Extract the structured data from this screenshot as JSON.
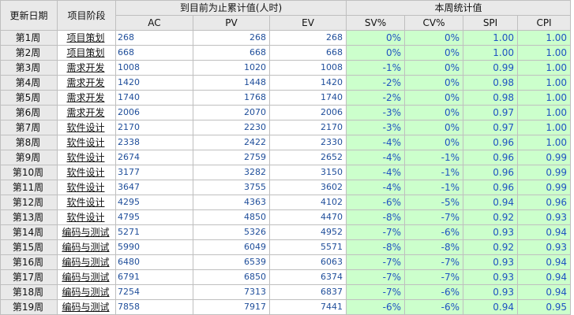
{
  "headers": {
    "update_date": "更新日期",
    "project_phase": "项目阶段",
    "cumulative_group": "到目前为止累计值(人时)",
    "weekly_group": "本周统计值",
    "ac": "AC",
    "pv": "PV",
    "ev": "EV",
    "sv_pct": "SV%",
    "cv_pct": "CV%",
    "spi": "SPI",
    "cpi": "CPI"
  },
  "rows": [
    {
      "week": "第1周",
      "phase": "项目策划",
      "ac": "268",
      "pv": "268",
      "ev": "268",
      "sv": "0%",
      "cv": "0%",
      "spi": "1.00",
      "cpi": "1.00"
    },
    {
      "week": "第2周",
      "phase": "项目策划",
      "ac": "668",
      "pv": "668",
      "ev": "668",
      "sv": "0%",
      "cv": "0%",
      "spi": "1.00",
      "cpi": "1.00"
    },
    {
      "week": "第3周",
      "phase": "需求开发",
      "ac": "1008",
      "pv": "1020",
      "ev": "1008",
      "sv": "-1%",
      "cv": "0%",
      "spi": "0.99",
      "cpi": "1.00"
    },
    {
      "week": "第4周",
      "phase": "需求开发",
      "ac": "1420",
      "pv": "1448",
      "ev": "1420",
      "sv": "-2%",
      "cv": "0%",
      "spi": "0.98",
      "cpi": "1.00"
    },
    {
      "week": "第5周",
      "phase": "需求开发",
      "ac": "1740",
      "pv": "1768",
      "ev": "1740",
      "sv": "-2%",
      "cv": "0%",
      "spi": "0.98",
      "cpi": "1.00"
    },
    {
      "week": "第6周",
      "phase": "需求开发",
      "ac": "2006",
      "pv": "2070",
      "ev": "2006",
      "sv": "-3%",
      "cv": "0%",
      "spi": "0.97",
      "cpi": "1.00"
    },
    {
      "week": "第7周",
      "phase": "软件设计",
      "ac": "2170",
      "pv": "2230",
      "ev": "2170",
      "sv": "-3%",
      "cv": "0%",
      "spi": "0.97",
      "cpi": "1.00"
    },
    {
      "week": "第8周",
      "phase": "软件设计",
      "ac": "2338",
      "pv": "2422",
      "ev": "2330",
      "sv": "-4%",
      "cv": "0%",
      "spi": "0.96",
      "cpi": "1.00"
    },
    {
      "week": "第9周",
      "phase": "软件设计",
      "ac": "2674",
      "pv": "2759",
      "ev": "2652",
      "sv": "-4%",
      "cv": "-1%",
      "spi": "0.96",
      "cpi": "0.99"
    },
    {
      "week": "第10周",
      "phase": "软件设计",
      "ac": "3177",
      "pv": "3282",
      "ev": "3150",
      "sv": "-4%",
      "cv": "-1%",
      "spi": "0.96",
      "cpi": "0.99"
    },
    {
      "week": "第11周",
      "phase": "软件设计",
      "ac": "3647",
      "pv": "3755",
      "ev": "3602",
      "sv": "-4%",
      "cv": "-1%",
      "spi": "0.96",
      "cpi": "0.99"
    },
    {
      "week": "第12周",
      "phase": "软件设计",
      "ac": "4295",
      "pv": "4363",
      "ev": "4102",
      "sv": "-6%",
      "cv": "-5%",
      "spi": "0.94",
      "cpi": "0.96"
    },
    {
      "week": "第13周",
      "phase": "软件设计",
      "ac": "4795",
      "pv": "4850",
      "ev": "4470",
      "sv": "-8%",
      "cv": "-7%",
      "spi": "0.92",
      "cpi": "0.93"
    },
    {
      "week": "第14周",
      "phase": "编码与测试",
      "ac": "5271",
      "pv": "5326",
      "ev": "4952",
      "sv": "-7%",
      "cv": "-6%",
      "spi": "0.93",
      "cpi": "0.94"
    },
    {
      "week": "第15周",
      "phase": "编码与测试",
      "ac": "5990",
      "pv": "6049",
      "ev": "5571",
      "sv": "-8%",
      "cv": "-8%",
      "spi": "0.92",
      "cpi": "0.93"
    },
    {
      "week": "第16周",
      "phase": "编码与测试",
      "ac": "6480",
      "pv": "6539",
      "ev": "6063",
      "sv": "-7%",
      "cv": "-7%",
      "spi": "0.93",
      "cpi": "0.94"
    },
    {
      "week": "第17周",
      "phase": "编码与测试",
      "ac": "6791",
      "pv": "6850",
      "ev": "6374",
      "sv": "-7%",
      "cv": "-7%",
      "spi": "0.93",
      "cpi": "0.94"
    },
    {
      "week": "第18周",
      "phase": "编码与测试",
      "ac": "7254",
      "pv": "7313",
      "ev": "6837",
      "sv": "-7%",
      "cv": "-6%",
      "spi": "0.93",
      "cpi": "0.94"
    },
    {
      "week": "第19周",
      "phase": "编码与测试",
      "ac": "7858",
      "pv": "7917",
      "ev": "7441",
      "sv": "-6%",
      "cv": "-6%",
      "spi": "0.94",
      "cpi": "0.95"
    }
  ],
  "colors": {
    "header_bg": "#e9e9e9",
    "stat_bg": "#ccffcc",
    "value_text": "#1f4e9a",
    "grid": "#bfbfbf"
  }
}
